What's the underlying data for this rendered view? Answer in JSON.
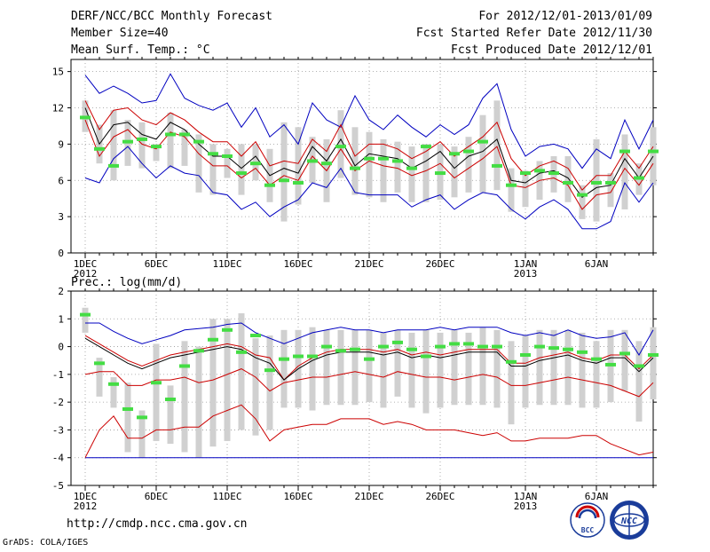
{
  "header": {
    "title": "DERF/NCC/BCC Monthly Forecast",
    "member_size": "Member Size=40",
    "variable": "Mean Surf. Temp.: °C",
    "period": "For 2012/12/01-2013/01/09",
    "fcst_started": "Fcst Started Refer Date 2012/11/30",
    "fcst_produced": "Fcst Produced Date 2012/12/01"
  },
  "footer": {
    "url": "http://cmdp.ncc.cma.gov.cn",
    "credit": "GrADS: COLA/IGES",
    "logo1_text": "BCC",
    "logo2_text": "NCC"
  },
  "colors": {
    "box": "#d0d0d0",
    "median": "#000000",
    "inner_band": "#cc0000",
    "outer_band": "#0000c0",
    "observed": "#44dd44"
  },
  "chart_data": [
    {
      "type": "box",
      "title": "Mean Surf. Temp.: °C",
      "x_tick_labels": [
        "1DEC\n2012",
        "6DEC",
        "11DEC",
        "16DEC",
        "21DEC",
        "26DEC",
        "1JAN\n2013",
        "6JAN"
      ],
      "x_tick_days": [
        1,
        6,
        11,
        16,
        21,
        26,
        32,
        37
      ],
      "x_range": [
        0,
        41
      ],
      "ylim": [
        0,
        16
      ],
      "yticks": [
        0,
        3,
        6,
        9,
        12,
        15
      ],
      "grid": "dotted",
      "series": [
        {
          "name": "max",
          "values": [
            14.7,
            13.2,
            13.8,
            13.2,
            12.4,
            12.6,
            14.8,
            12.8,
            12.2,
            11.8,
            12.4,
            10.4,
            12.0,
            9.6,
            10.6,
            9.0,
            12.4,
            11.0,
            10.4,
            13.0,
            11.0,
            10.2,
            11.4,
            10.4,
            9.6,
            10.6,
            9.8,
            10.6,
            12.8,
            14.0,
            10.2,
            8.0,
            8.8,
            9.0,
            8.6,
            7.0,
            8.6,
            7.8,
            11.0,
            8.6,
            11.0
          ]
        },
        {
          "name": "upper",
          "values": [
            12.6,
            10.2,
            11.8,
            12.0,
            11.0,
            10.6,
            11.6,
            11.0,
            10.0,
            9.2,
            9.2,
            8.0,
            9.2,
            7.2,
            7.6,
            7.4,
            9.4,
            8.4,
            10.6,
            8.0,
            9.0,
            9.0,
            8.6,
            7.8,
            8.4,
            9.2,
            8.0,
            8.8,
            9.6,
            10.8,
            7.8,
            6.4,
            7.2,
            7.6,
            7.0,
            5.2,
            6.4,
            6.4,
            8.4,
            7.0,
            8.8
          ]
        },
        {
          "name": "median",
          "values": [
            12.0,
            9.0,
            10.6,
            10.8,
            9.8,
            9.4,
            10.8,
            10.2,
            9.0,
            8.0,
            8.0,
            7.0,
            8.0,
            6.4,
            7.0,
            6.6,
            8.8,
            7.6,
            9.4,
            7.2,
            8.2,
            8.0,
            7.8,
            7.0,
            7.6,
            8.4,
            7.0,
            8.0,
            8.4,
            9.4,
            6.0,
            5.8,
            6.6,
            6.8,
            6.2,
            4.6,
            5.4,
            5.6,
            7.8,
            6.2,
            8.0
          ]
        },
        {
          "name": "lower",
          "values": [
            11.0,
            8.0,
            9.6,
            10.2,
            9.0,
            8.6,
            10.0,
            9.6,
            8.2,
            7.2,
            7.2,
            6.2,
            7.0,
            5.6,
            6.4,
            6.0,
            8.0,
            6.8,
            8.6,
            6.8,
            7.6,
            7.2,
            7.0,
            6.4,
            6.8,
            7.4,
            6.2,
            7.0,
            7.8,
            8.8,
            5.6,
            5.4,
            6.0,
            6.2,
            5.6,
            3.6,
            4.8,
            5.0,
            7.0,
            5.6,
            7.4
          ]
        },
        {
          "name": "min",
          "values": [
            6.2,
            5.8,
            7.8,
            8.8,
            7.4,
            6.2,
            7.2,
            6.6,
            6.4,
            5.0,
            4.8,
            3.6,
            4.2,
            3.0,
            3.8,
            4.4,
            5.8,
            5.4,
            7.0,
            5.0,
            4.8,
            4.8,
            4.8,
            3.8,
            4.4,
            4.8,
            3.6,
            4.4,
            5.0,
            4.8,
            3.6,
            2.8,
            3.8,
            4.4,
            3.6,
            2.0,
            2.0,
            2.6,
            5.8,
            4.2,
            5.8
          ]
        },
        {
          "name": "box_low",
          "values": [
            10.0,
            7.4,
            6.0,
            7.2,
            7.0,
            7.6,
            7.0,
            7.2,
            5.0,
            4.8,
            6.2,
            4.8,
            6.0,
            4.2,
            2.6,
            4.0,
            5.8,
            4.2,
            6.2,
            4.8,
            4.6,
            4.2,
            5.0,
            4.2,
            4.2,
            4.4,
            4.6,
            5.0,
            5.0,
            5.2,
            3.4,
            3.8,
            4.4,
            5.0,
            4.2,
            2.8,
            2.6,
            3.8,
            3.6,
            4.8,
            5.6
          ]
        },
        {
          "name": "box_high",
          "values": [
            12.6,
            10.6,
            11.8,
            11.0,
            10.8,
            9.0,
            11.6,
            10.2,
            9.8,
            9.0,
            8.6,
            9.0,
            9.0,
            8.6,
            10.8,
            10.4,
            9.6,
            9.4,
            11.8,
            10.4,
            10.0,
            9.4,
            9.2,
            8.8,
            9.0,
            9.0,
            8.8,
            9.6,
            11.4,
            12.6,
            7.0,
            6.8,
            7.6,
            8.0,
            8.0,
            5.6,
            9.4,
            6.6,
            9.8,
            7.4,
            10.4
          ]
        },
        {
          "name": "observed",
          "values": [
            11.2,
            8.6,
            7.2,
            9.2,
            9.4,
            8.8,
            9.8,
            9.8,
            9.2,
            8.2,
            8.0,
            6.6,
            7.4,
            5.6,
            6.0,
            5.8,
            7.6,
            7.4,
            8.8,
            7.0,
            7.8,
            7.8,
            7.6,
            7.0,
            8.8,
            6.6,
            8.2,
            8.4,
            9.2,
            7.2,
            5.6,
            6.6,
            6.8,
            6.6,
            5.8,
            4.8,
            5.8,
            5.8,
            8.4,
            6.2,
            8.4
          ]
        }
      ]
    },
    {
      "type": "box",
      "title": "Prec.: log(mm/d)",
      "x_tick_labels": [
        "1DEC\n2012",
        "6DEC",
        "11DEC",
        "16DEC",
        "21DEC",
        "26DEC",
        "1JAN\n2013",
        "6JAN"
      ],
      "x_tick_days": [
        1,
        6,
        11,
        16,
        21,
        26,
        32,
        37
      ],
      "x_range": [
        0,
        41
      ],
      "ylim": [
        -5,
        2
      ],
      "yticks": [
        -5,
        -4,
        -3,
        -2,
        -1,
        0,
        1,
        2
      ],
      "grid": "dotted",
      "series": [
        {
          "name": "max",
          "values": [
            0.85,
            0.85,
            0.55,
            0.3,
            0.1,
            0.25,
            0.4,
            0.6,
            0.65,
            0.7,
            0.8,
            0.85,
            0.5,
            0.3,
            0.1,
            0.3,
            0.5,
            0.6,
            0.7,
            0.6,
            0.6,
            0.5,
            0.6,
            0.6,
            0.6,
            0.7,
            0.6,
            0.7,
            0.7,
            0.7,
            0.5,
            0.4,
            0.5,
            0.4,
            0.6,
            0.4,
            0.3,
            0.35,
            0.5,
            -0.3,
            0.6
          ]
        },
        {
          "name": "upper",
          "values": [
            0.4,
            0.1,
            -0.2,
            -0.5,
            -0.7,
            -0.5,
            -0.3,
            -0.2,
            -0.1,
            0.0,
            0.1,
            0.0,
            -0.3,
            -0.4,
            -1.2,
            -0.7,
            -0.4,
            -0.2,
            -0.1,
            -0.1,
            -0.1,
            -0.2,
            -0.1,
            -0.3,
            -0.2,
            -0.3,
            -0.2,
            -0.1,
            -0.1,
            -0.1,
            -0.6,
            -0.6,
            -0.4,
            -0.3,
            -0.2,
            -0.4,
            -0.5,
            -0.3,
            -0.3,
            -0.8,
            -0.3
          ]
        },
        {
          "name": "median",
          "values": [
            0.3,
            0.0,
            -0.3,
            -0.6,
            -0.8,
            -0.6,
            -0.4,
            -0.3,
            -0.2,
            -0.1,
            0.0,
            -0.1,
            -0.4,
            -0.6,
            -1.2,
            -0.8,
            -0.5,
            -0.3,
            -0.2,
            -0.2,
            -0.2,
            -0.3,
            -0.2,
            -0.4,
            -0.3,
            -0.4,
            -0.3,
            -0.2,
            -0.2,
            -0.2,
            -0.7,
            -0.7,
            -0.5,
            -0.4,
            -0.3,
            -0.5,
            -0.6,
            -0.4,
            -0.4,
            -0.9,
            -0.4
          ]
        },
        {
          "name": "lower",
          "values": [
            -1.0,
            -0.9,
            -0.9,
            -1.4,
            -1.4,
            -1.2,
            -1.2,
            -1.1,
            -1.3,
            -1.2,
            -1.0,
            -0.8,
            -1.1,
            -1.6,
            -1.3,
            -1.2,
            -1.1,
            -1.1,
            -1.0,
            -0.9,
            -1.0,
            -1.1,
            -0.9,
            -1.0,
            -1.1,
            -1.1,
            -1.2,
            -1.1,
            -1.0,
            -1.1,
            -1.4,
            -1.4,
            -1.3,
            -1.2,
            -1.1,
            -1.2,
            -1.3,
            -1.4,
            -1.6,
            -1.8,
            -1.3
          ]
        },
        {
          "name": "min",
          "values": [
            -4.0,
            -3.0,
            -2.5,
            -3.3,
            -3.3,
            -3.0,
            -3.0,
            -2.9,
            -2.9,
            -2.5,
            -2.3,
            -2.1,
            -2.6,
            -3.4,
            -3.0,
            -2.9,
            -2.8,
            -2.8,
            -2.6,
            -2.6,
            -2.6,
            -2.8,
            -2.7,
            -2.8,
            -3.0,
            -3.0,
            -3.0,
            -3.1,
            -3.2,
            -3.1,
            -3.4,
            -3.4,
            -3.3,
            -3.3,
            -3.3,
            -3.2,
            -3.2,
            -3.5,
            -3.7,
            -3.9,
            -3.8
          ]
        },
        {
          "name": "floor",
          "values": [
            -4.0,
            -4.0,
            -4.0,
            -4.0,
            -4.0,
            -4.0,
            -4.0,
            -4.0,
            -4.0,
            -4.0,
            -4.0,
            -4.0,
            -4.0,
            -4.0,
            -4.0,
            -4.0,
            -4.0,
            -4.0,
            -4.0,
            -4.0,
            -4.0,
            -4.0,
            -4.0,
            -4.0,
            -4.0,
            -4.0,
            -4.0,
            -4.0,
            -4.0,
            -4.0,
            -4.0,
            -4.0,
            -4.0,
            -4.0,
            -4.0,
            -4.0,
            -4.0,
            -4.0,
            -4.0,
            -4.0,
            -4.0
          ]
        },
        {
          "name": "box_low",
          "values": [
            0.5,
            -1.8,
            -2.2,
            -3.8,
            -4.0,
            -3.4,
            -3.5,
            -3.8,
            -4.0,
            -3.6,
            -3.4,
            -3.0,
            -3.2,
            -3.0,
            -2.2,
            -2.2,
            -2.3,
            -2.1,
            -2.1,
            -2.1,
            -2.0,
            -2.2,
            -1.8,
            -2.2,
            -2.4,
            -2.2,
            -2.1,
            -2.1,
            -2.1,
            -2.2,
            -2.8,
            -2.2,
            -2.1,
            -2.1,
            -2.1,
            -2.2,
            -2.2,
            -2.0,
            -1.6,
            -2.7,
            -1.9
          ]
        },
        {
          "name": "box_high",
          "values": [
            1.4,
            -0.4,
            -1.1,
            -1.3,
            -2.3,
            0.1,
            -1.4,
            0.2,
            0.0,
            1.0,
            1.0,
            1.2,
            0.3,
            0.4,
            0.6,
            0.6,
            0.7,
            0.6,
            0.6,
            0.6,
            0.6,
            0.5,
            0.6,
            0.5,
            0.6,
            0.5,
            0.6,
            0.5,
            0.7,
            0.6,
            0.2,
            0.4,
            0.6,
            0.6,
            0.6,
            0.5,
            0.2,
            0.6,
            0.6,
            0.2,
            0.7
          ]
        },
        {
          "name": "observed",
          "values": [
            1.15,
            -0.6,
            -1.35,
            -2.25,
            -2.55,
            -1.3,
            -1.9,
            -0.7,
            -0.15,
            0.25,
            0.6,
            -0.2,
            0.4,
            -0.85,
            -0.45,
            -0.35,
            -0.35,
            0.0,
            -0.15,
            -0.1,
            -0.45,
            0.0,
            0.15,
            -0.1,
            -0.35,
            0.0,
            0.1,
            0.1,
            0.0,
            0.0,
            -0.55,
            -0.3,
            0.0,
            -0.05,
            -0.1,
            -0.2,
            -0.45,
            -0.65,
            -0.25,
            -0.7,
            -0.3
          ]
        }
      ]
    }
  ]
}
